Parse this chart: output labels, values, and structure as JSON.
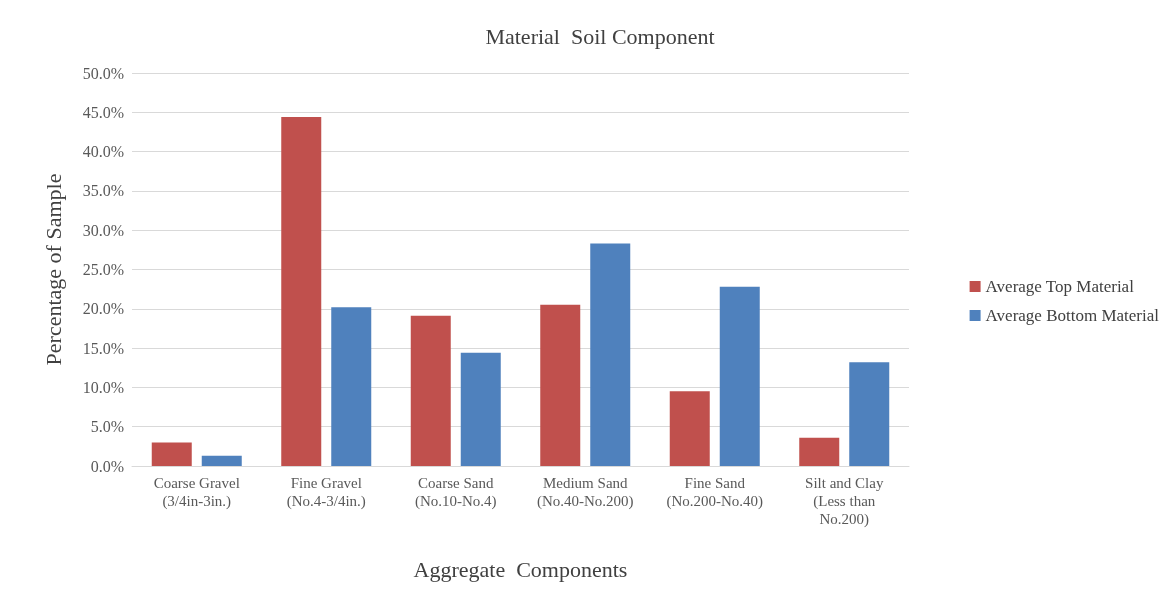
{
  "chart_data": {
    "type": "bar",
    "title": "Material  Soil Component",
    "xlabel": "Aggregate  Components",
    "ylabel": "Percentage of Sample",
    "categories": [
      "Coarse Gravel\n(3/4in-3in.)",
      "Fine Gravel\n(No.4-3/4in.)",
      "Coarse Sand\n(No.10-No.4)",
      "Medium Sand\n(No.40-No.200)",
      "Fine Sand\n(No.200-No.40)",
      "Silt and Clay\n(Less than\nNo.200)"
    ],
    "series": [
      {
        "name": "Average Top Material",
        "color": "#c0504d",
        "values": [
          3.0,
          44.4,
          19.1,
          20.5,
          9.5,
          3.6
        ]
      },
      {
        "name": "Average Bottom Material",
        "color": "#4f81bd",
        "values": [
          1.3,
          20.2,
          14.4,
          28.3,
          22.8,
          13.2
        ]
      }
    ],
    "ylim": [
      0,
      50
    ],
    "yticks": [
      {
        "value": 0,
        "label": "0.0%"
      },
      {
        "value": 5,
        "label": "5.0%"
      },
      {
        "value": 10,
        "label": "10.0%"
      },
      {
        "value": 15,
        "label": "15.0%"
      },
      {
        "value": 20,
        "label": "20.0%"
      },
      {
        "value": 25,
        "label": "25.0%"
      },
      {
        "value": 30,
        "label": "30.0%"
      },
      {
        "value": 35,
        "label": "35.0%"
      },
      {
        "value": 40,
        "label": "40.0%"
      },
      {
        "value": 45,
        "label": "45.0%"
      },
      {
        "value": 50,
        "label": "50.0%"
      }
    ],
    "grid": "y",
    "legend": "right"
  }
}
